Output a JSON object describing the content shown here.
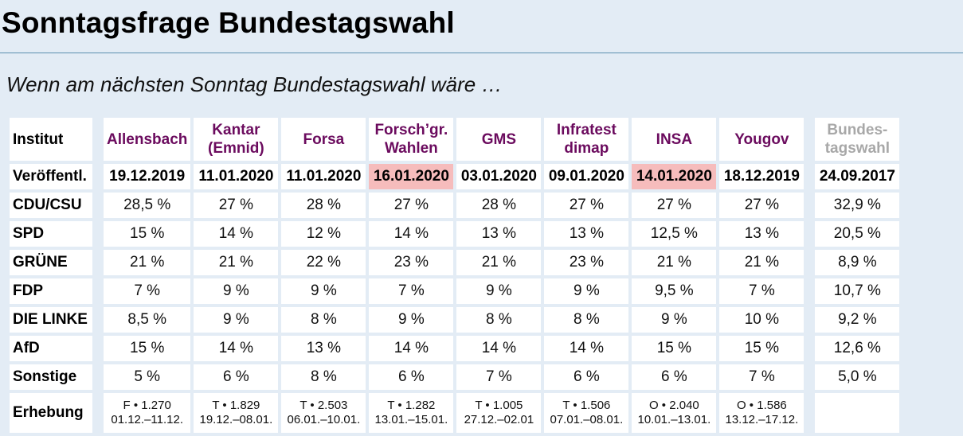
{
  "title": "Sonntagsfrage Bundestagswahl",
  "subtitle": "Wenn am nächsten Sonntag Bundestagswahl wäre …",
  "colors": {
    "institute_header": "#6b0b5e",
    "highlight": "#f6bcbc",
    "reference": "#a8a8a8",
    "background": "#e3ecf5"
  },
  "table": {
    "corner_label": "Institut",
    "date_label": "Veröffentl.",
    "erhebung_label": "Erhebung",
    "institutes": [
      {
        "name_l1": "Allensbach",
        "name_l2": "",
        "date": "19.12.2019",
        "highlight": false,
        "erh_l1": "F • 1.270",
        "erh_l2": "01.12.–11.12."
      },
      {
        "name_l1": "Kantar",
        "name_l2": "(Emnid)",
        "date": "11.01.2020",
        "highlight": false,
        "erh_l1": "T • 1.829",
        "erh_l2": "19.12.–08.01."
      },
      {
        "name_l1": "Forsa",
        "name_l2": "",
        "date": "11.01.2020",
        "highlight": false,
        "erh_l1": "T • 2.503",
        "erh_l2": "06.01.–10.01."
      },
      {
        "name_l1": "Forsch’gr.",
        "name_l2": "Wahlen",
        "date": "16.01.2020",
        "highlight": true,
        "erh_l1": "T • 1.282",
        "erh_l2": "13.01.–15.01."
      },
      {
        "name_l1": "GMS",
        "name_l2": "",
        "date": "03.01.2020",
        "highlight": false,
        "erh_l1": "T • 1.005",
        "erh_l2": "27.12.–02.01"
      },
      {
        "name_l1": "Infratest",
        "name_l2": "dimap",
        "date": "09.01.2020",
        "highlight": false,
        "erh_l1": "T • 1.506",
        "erh_l2": "07.01.–08.01."
      },
      {
        "name_l1": "INSA",
        "name_l2": "",
        "date": "14.01.2020",
        "highlight": true,
        "erh_l1": "O • 2.040",
        "erh_l2": "10.01.–13.01."
      },
      {
        "name_l1": "Yougov",
        "name_l2": "",
        "date": "18.12.2019",
        "highlight": false,
        "erh_l1": "O • 1.586",
        "erh_l2": "13.12.–17.12."
      }
    ],
    "reference": {
      "name_l1": "Bundes-",
      "name_l2": "tagswahl",
      "date": "24.09.2017"
    },
    "parties": [
      {
        "name": "CDU/CSU",
        "values": [
          "28,5 %",
          "27 %",
          "28 %",
          "27 %",
          "28 %",
          "27 %",
          "27 %",
          "27 %"
        ],
        "ref": "32,9 %"
      },
      {
        "name": "SPD",
        "values": [
          "15 %",
          "14 %",
          "12 %",
          "14 %",
          "13 %",
          "13 %",
          "12,5 %",
          "13 %"
        ],
        "ref": "20,5 %"
      },
      {
        "name": "GRÜNE",
        "values": [
          "21 %",
          "21 %",
          "22 %",
          "23 %",
          "21 %",
          "23 %",
          "21 %",
          "21 %"
        ],
        "ref": "8,9 %"
      },
      {
        "name": "FDP",
        "values": [
          "7 %",
          "9 %",
          "9 %",
          "7 %",
          "9 %",
          "9 %",
          "9,5 %",
          "7 %"
        ],
        "ref": "10,7 %"
      },
      {
        "name": "DIE LINKE",
        "values": [
          "8,5 %",
          "9 %",
          "8 %",
          "9 %",
          "8 %",
          "8 %",
          "9 %",
          "10 %"
        ],
        "ref": "9,2 %"
      },
      {
        "name": "AfD",
        "values": [
          "15 %",
          "14 %",
          "13 %",
          "14 %",
          "14 %",
          "14 %",
          "15 %",
          "15 %"
        ],
        "ref": "12,6 %"
      },
      {
        "name": "Sonstige",
        "values": [
          "5 %",
          "6 %",
          "8 %",
          "6 %",
          "7 %",
          "6 %",
          "6 %",
          "7 %"
        ],
        "ref": "5,0 %"
      }
    ]
  }
}
